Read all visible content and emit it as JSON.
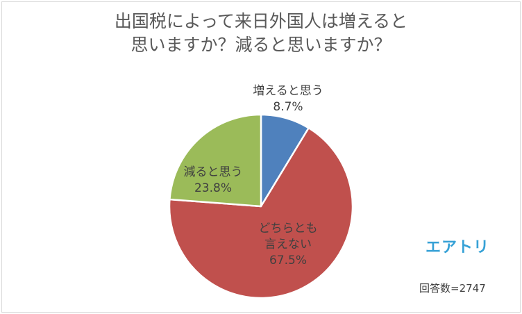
{
  "title_lines": [
    "出国税によって来日外国人は増えると",
    "思いますか？減ると思いますか？"
  ],
  "chart_data": {
    "type": "pie",
    "title": "出国税によって来日外国人は増えると思いますか？減ると思いますか？",
    "start_angle_deg": 0,
    "direction": "clockwise",
    "slices": [
      {
        "label": "増えると思う",
        "value": 8.7,
        "value_text": "8.7%",
        "color": "#4f81bd"
      },
      {
        "label": "どちらとも言えない",
        "label_lines": [
          "どちらとも",
          "言えない"
        ],
        "value": 67.5,
        "value_text": "67.5%",
        "color": "#c0504d"
      },
      {
        "label": "減ると思う",
        "value": 23.8,
        "value_text": "23.8%",
        "color": "#9bbb59"
      }
    ]
  },
  "logo_text": "エアトリ",
  "note": "回答数=2747"
}
